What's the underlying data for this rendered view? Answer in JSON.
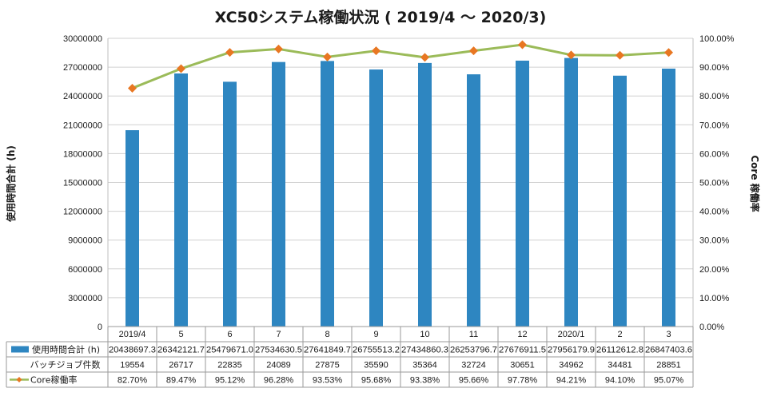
{
  "chart_data": {
    "type": "bar",
    "title": "XC50システム稼働状況 ( 2019/4 ～ 2020/3)",
    "ylabel_left": "使用時間合計 (h)",
    "ylabel_right": "Core 稼働率",
    "categories": [
      "2019/4",
      "5",
      "6",
      "7",
      "8",
      "9",
      "10",
      "11",
      "12",
      "2020/1",
      "2",
      "3"
    ],
    "y_left_lim": [
      0,
      30000000
    ],
    "y_left_ticks": [
      "0",
      "3000000",
      "6000000",
      "9000000",
      "12000000",
      "15000000",
      "18000000",
      "21000000",
      "24000000",
      "27000000",
      "30000000"
    ],
    "y_right_lim": [
      0,
      100
    ],
    "y_right_ticks": [
      "0.00%",
      "10.00%",
      "20.00%",
      "30.00%",
      "40.00%",
      "50.00%",
      "60.00%",
      "70.00%",
      "80.00%",
      "90.00%",
      "100.00%"
    ],
    "grid": true,
    "series": [
      {
        "name": "使用時間合計 (h)",
        "kind": "bar",
        "axis": "left",
        "color": "#2e86c1",
        "values": [
          20438697.3,
          26342121.7,
          25479671.0,
          27534630.5,
          27641849.7,
          26755513.2,
          27434860.3,
          26253796.7,
          27676911.5,
          27956179.9,
          26112612.8,
          26847403.6
        ],
        "labels": [
          "20438697.3",
          "26342121.7",
          "25479671.0",
          "27534630.5",
          "27641849.7",
          "26755513.2",
          "27434860.3",
          "26253796.7",
          "27676911.5",
          "27956179.9",
          "26112612.8",
          "26847403.6"
        ]
      },
      {
        "name": "バッチジョブ件数",
        "kind": "table-only",
        "values": [
          19554,
          26717,
          22835,
          24089,
          27875,
          35590,
          35364,
          32724,
          30651,
          34962,
          34481,
          28851
        ],
        "labels": [
          "19554",
          "26717",
          "22835",
          "24089",
          "27875",
          "35590",
          "35364",
          "32724",
          "30651",
          "34962",
          "34481",
          "28851"
        ]
      },
      {
        "name": "Core稼働率",
        "kind": "line",
        "axis": "right",
        "color": "#9bbb59",
        "marker_color": "#e87722",
        "values": [
          82.7,
          89.47,
          95.12,
          96.28,
          93.53,
          95.68,
          93.38,
          95.66,
          97.78,
          94.21,
          94.1,
          95.07
        ],
        "labels": [
          "82.70%",
          "89.47%",
          "95.12%",
          "96.28%",
          "93.53%",
          "95.68%",
          "93.38%",
          "95.66%",
          "97.78%",
          "94.21%",
          "94.10%",
          "95.07%"
        ]
      }
    ]
  }
}
